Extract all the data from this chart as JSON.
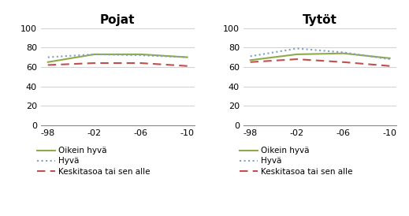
{
  "x_labels": [
    "-98",
    "-02",
    "-06",
    "-10"
  ],
  "x_values": [
    0,
    1,
    2,
    3
  ],
  "pojat": {
    "oikein_hyva": [
      65,
      73,
      73,
      70
    ],
    "hyva": [
      70,
      73,
      72,
      70
    ],
    "keskitaso": [
      62,
      64,
      64,
      61
    ]
  },
  "tytot": {
    "oikein_hyva": [
      67,
      73,
      74,
      69
    ],
    "hyva": [
      71,
      79,
      75,
      68
    ],
    "keskitaso": [
      65,
      68,
      65,
      61
    ]
  },
  "title_pojat": "Pojat",
  "title_tytot": "Tytöt",
  "ylim": [
    0,
    100
  ],
  "yticks": [
    0,
    20,
    40,
    60,
    80,
    100
  ],
  "color_oikein_hyva": "#8faa4b",
  "color_hyva": "#7f9ec8",
  "color_keskitaso": "#c0504d",
  "legend_labels": [
    "Oikein hyvä",
    "Hyvä",
    "Keskitasoa tai sen alle"
  ],
  "title_fontsize": 11,
  "legend_fontsize": 7.5,
  "tick_fontsize": 8
}
